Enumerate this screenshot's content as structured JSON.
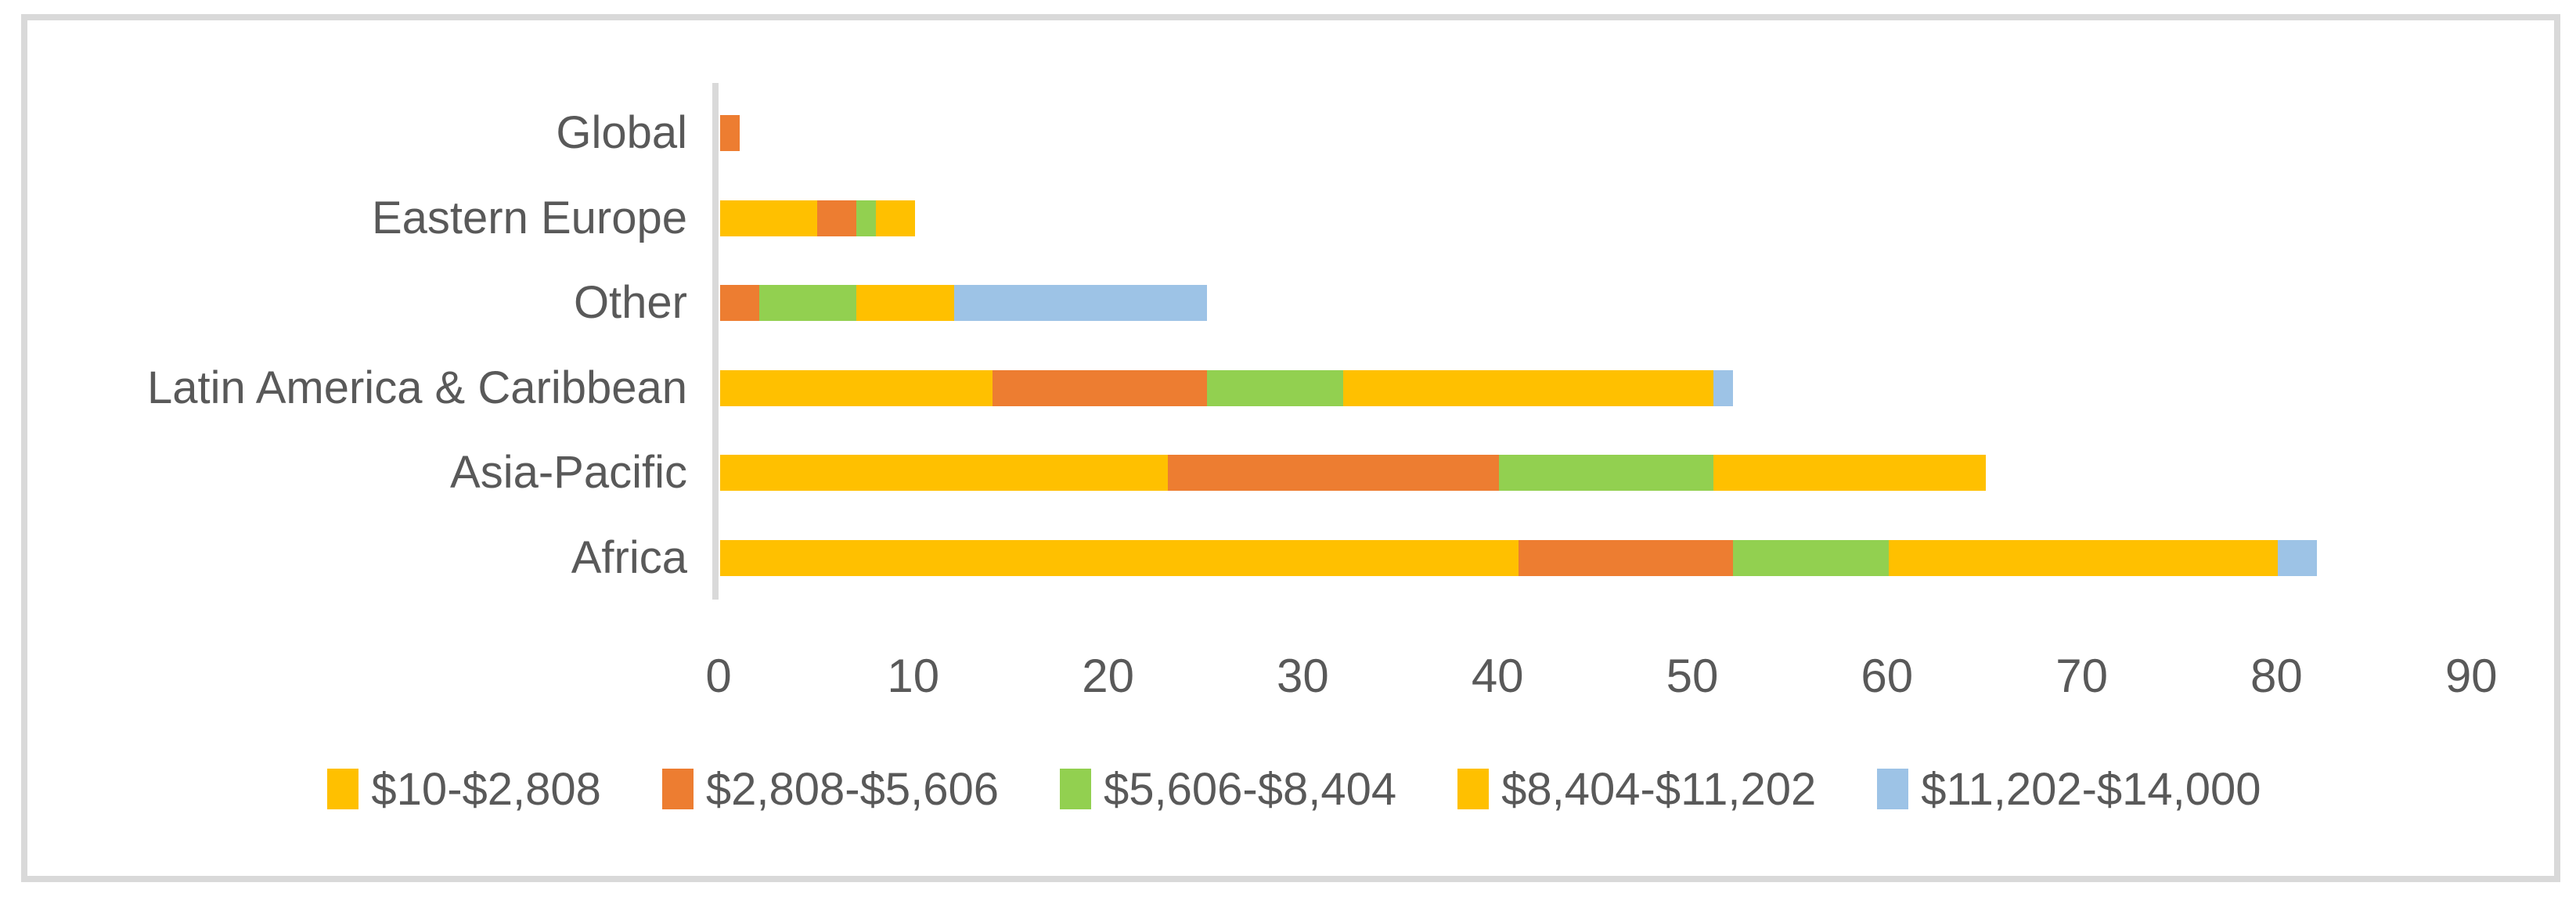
{
  "chart_data": {
    "type": "bar",
    "orientation": "horizontal",
    "stacked": true,
    "title": "",
    "categories": [
      "Global",
      "Eastern Europe",
      "Other",
      "Latin America & Caribbean",
      "Asia-Pacific",
      "Africa"
    ],
    "series": [
      {
        "name": "$10-$2,808",
        "color": "#FFC000",
        "values": [
          0,
          5,
          0,
          14,
          23,
          41
        ]
      },
      {
        "name": "$2,808-$5,606",
        "color": "#ED7D31",
        "values": [
          1,
          2,
          2,
          11,
          17,
          11
        ]
      },
      {
        "name": "$5,606-$8,404",
        "color": "#92D050",
        "values": [
          0,
          1,
          5,
          7,
          11,
          8
        ]
      },
      {
        "name": "$8,404-$11,202",
        "color": "#FFC000",
        "values": [
          0,
          2,
          5,
          19,
          14,
          20
        ]
      },
      {
        "name": "$11,202-$14,000",
        "color": "#9DC3E6",
        "values": [
          0,
          0,
          13,
          1,
          0,
          2
        ]
      }
    ],
    "category_totals": [
      1,
      10,
      25,
      52,
      65,
      82
    ],
    "x_axis": {
      "min": 0,
      "max": 90,
      "step": 10,
      "tick_labels": [
        "0",
        "10",
        "20",
        "30",
        "40",
        "50",
        "60",
        "70",
        "80",
        "90"
      ]
    },
    "legend_position": "bottom",
    "grid": false
  },
  "colors": {
    "axis_line": "#d9d9d9",
    "frame_border": "#d9d9d9",
    "text": "#595959",
    "background": "#ffffff"
  }
}
